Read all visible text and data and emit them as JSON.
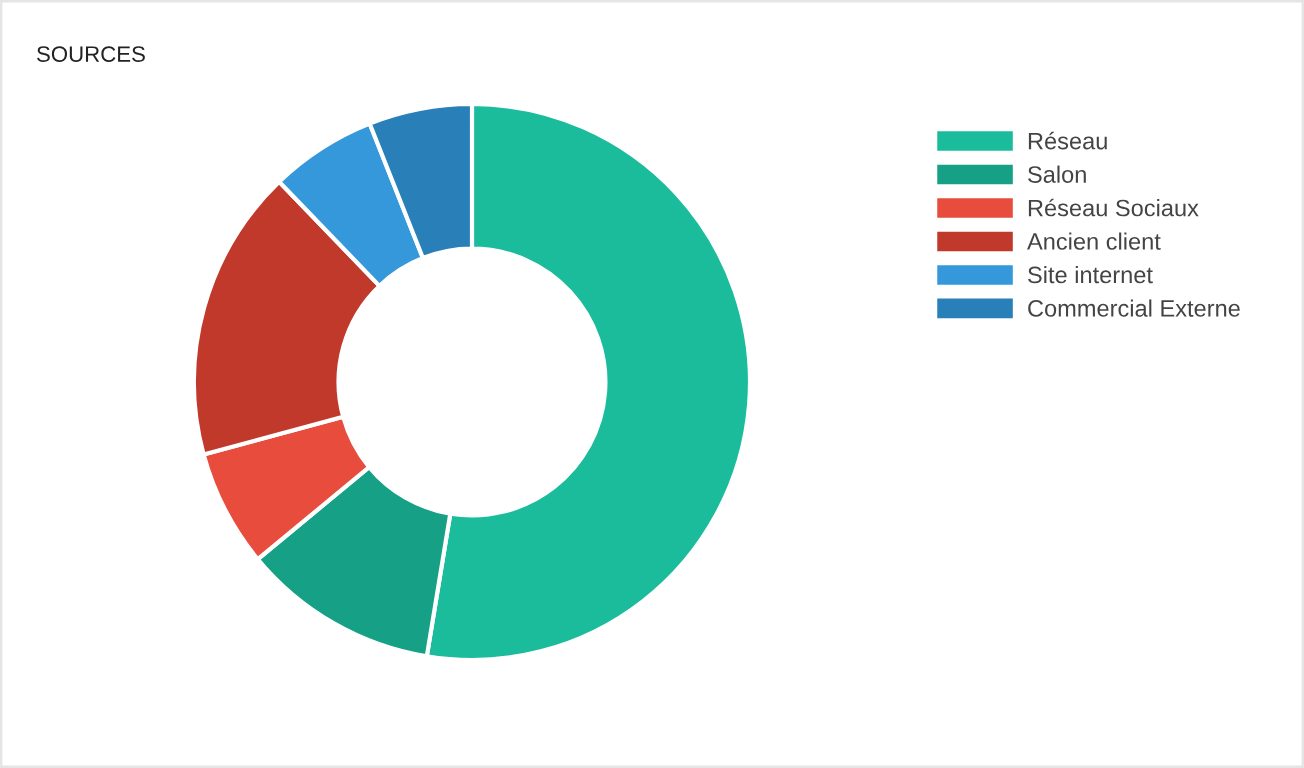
{
  "chart_data": {
    "type": "donut",
    "title": "SOURCES",
    "categories": [
      "Réseau",
      "Salon",
      "Réseau Sociaux",
      "Ancien client",
      "Site internet",
      "Commercial Externe"
    ],
    "values": [
      52.6,
      11.4,
      6.8,
      17.0,
      6.2,
      6.0
    ],
    "colors": [
      "#1abc9c",
      "#16a085",
      "#e74c3c",
      "#c0392b",
      "#3498db",
      "#2980b9"
    ],
    "legend": "top right"
  }
}
